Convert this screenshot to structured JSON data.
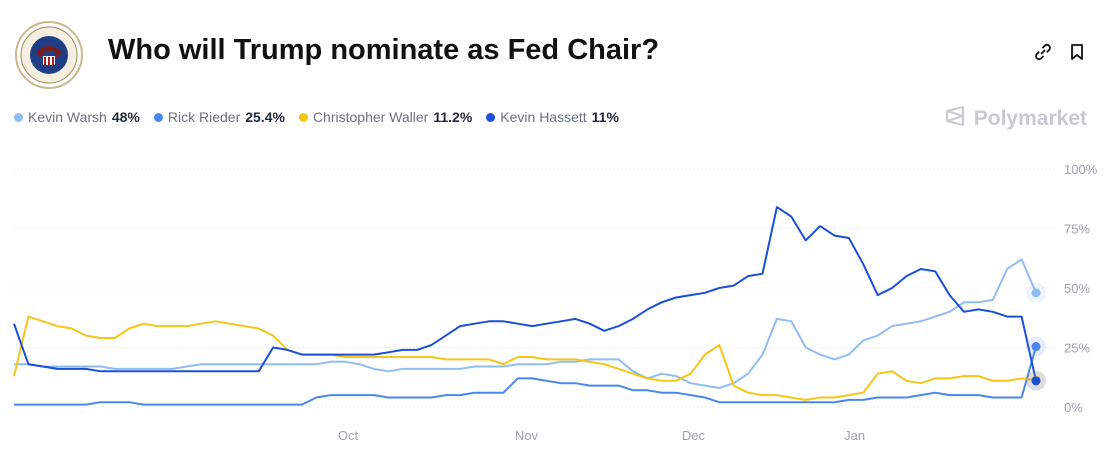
{
  "header": {
    "title": "Who will Trump nominate as Fed Chair?"
  },
  "icons": {
    "seal": "federal-reserve-seal-icon",
    "link": "link-icon",
    "bookmark": "bookmark-icon",
    "brand": "polymarket-logo-icon"
  },
  "brand": {
    "name": "Polymarket"
  },
  "legend": [
    {
      "name": "Kevin Warsh",
      "value": "48%",
      "color": "#8fbdf2"
    },
    {
      "name": "Rick Rieder",
      "value": "25.4%",
      "color": "#4a86ef"
    },
    {
      "name": "Christopher Waller",
      "value": "11.2%",
      "color": "#f5c518"
    },
    {
      "name": "Kevin Hassett",
      "value": "11%",
      "color": "#1c4fd8"
    }
  ],
  "chart_data": {
    "type": "line",
    "title": "Who will Trump nominate as Fed Chair?",
    "xlabel": "",
    "ylabel": "",
    "x_ticks": [
      "Oct",
      "Nov",
      "Dec",
      "Jan"
    ],
    "y_ticks": [
      "100%",
      "75%",
      "50%",
      "25%",
      "0%"
    ],
    "ylim": [
      0,
      100
    ],
    "grid": true,
    "x": [
      0,
      5,
      10,
      15,
      20,
      25,
      30,
      35,
      40,
      45,
      50,
      55,
      60,
      65,
      70,
      75,
      80,
      85,
      90,
      95,
      100,
      105,
      110,
      115,
      120,
      125,
      130,
      135,
      140,
      145,
      150,
      155,
      160,
      165,
      170,
      175,
      180,
      185,
      190,
      195,
      200,
      205,
      210,
      215,
      220,
      225,
      230,
      235,
      240,
      245,
      250,
      255,
      260,
      265,
      270,
      275,
      280,
      285,
      290,
      295,
      300,
      305,
      310,
      315,
      320,
      325,
      330,
      335,
      340,
      345,
      350,
      355
    ],
    "series": [
      {
        "name": "Kevin Warsh",
        "color": "#8fbdf2",
        "values": [
          18,
          18,
          17,
          17,
          17,
          17,
          17,
          16,
          16,
          16,
          16,
          16,
          17,
          18,
          18,
          18,
          18,
          18,
          18,
          18,
          18,
          18,
          19,
          19,
          18,
          16,
          15,
          16,
          16,
          16,
          16,
          16,
          17,
          17,
          17,
          18,
          18,
          18,
          19,
          19,
          20,
          20,
          20,
          15,
          12,
          14,
          13,
          10,
          9,
          8,
          10,
          14,
          22,
          37,
          36,
          25,
          22,
          20,
          22,
          28,
          30,
          34,
          35,
          36,
          38,
          40,
          44,
          44,
          45,
          58,
          62,
          48
        ]
      },
      {
        "name": "Rick Rieder",
        "color": "#4a86ef",
        "values": [
          1,
          1,
          1,
          1,
          1,
          1,
          2,
          2,
          2,
          1,
          1,
          1,
          1,
          1,
          1,
          1,
          1,
          1,
          1,
          1,
          1,
          4,
          5,
          5,
          5,
          5,
          4,
          4,
          4,
          4,
          5,
          5,
          6,
          6,
          6,
          12,
          12,
          11,
          10,
          10,
          9,
          9,
          9,
          7,
          7,
          6,
          6,
          5,
          4,
          2,
          2,
          2,
          2,
          2,
          2,
          2,
          2,
          2,
          3,
          3,
          4,
          4,
          4,
          5,
          6,
          5,
          5,
          5,
          4,
          4,
          4,
          25.4
        ]
      },
      {
        "name": "Christopher Waller",
        "color": "#f5c518",
        "values": [
          13,
          38,
          36,
          34,
          33,
          30,
          29,
          29,
          33,
          35,
          34,
          34,
          34,
          35,
          36,
          35,
          34,
          33,
          30,
          24,
          22,
          22,
          22,
          21,
          21,
          21,
          21,
          21,
          21,
          21,
          20,
          20,
          20,
          20,
          18,
          21,
          21,
          20,
          20,
          20,
          19,
          18,
          16,
          14,
          12,
          11,
          11,
          14,
          22,
          26,
          9,
          6,
          5,
          5,
          4,
          3,
          4,
          4,
          5,
          6,
          14,
          15,
          11,
          10,
          12,
          12,
          13,
          13,
          11,
          11,
          12,
          11.2
        ]
      },
      {
        "name": "Kevin Hassett",
        "color": "#1c4fd8",
        "values": [
          35,
          18,
          17,
          16,
          16,
          16,
          15,
          15,
          15,
          15,
          15,
          15,
          15,
          15,
          15,
          15,
          15,
          15,
          25,
          24,
          22,
          22,
          22,
          22,
          22,
          22,
          23,
          24,
          24,
          26,
          30,
          34,
          35,
          36,
          36,
          35,
          34,
          35,
          36,
          37,
          35,
          32,
          34,
          37,
          41,
          44,
          46,
          47,
          48,
          50,
          51,
          55,
          56,
          84,
          80,
          70,
          76,
          72,
          71,
          60,
          47,
          50,
          55,
          58,
          57,
          47,
          40,
          41,
          40,
          38,
          38,
          11
        ]
      }
    ]
  }
}
